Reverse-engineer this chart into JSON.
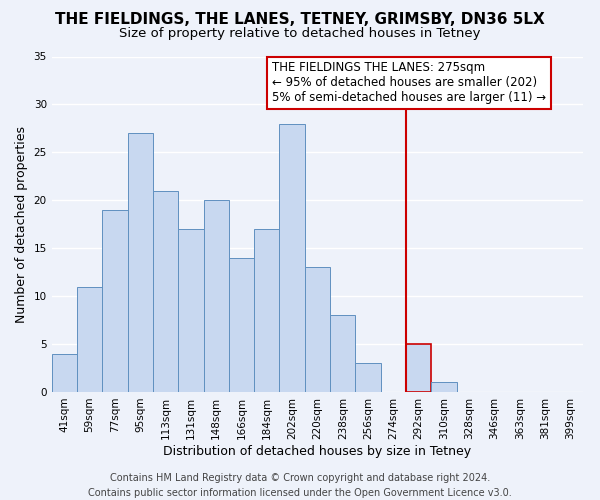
{
  "title": "THE FIELDINGS, THE LANES, TETNEY, GRIMSBY, DN36 5LX",
  "subtitle": "Size of property relative to detached houses in Tetney",
  "xlabel": "Distribution of detached houses by size in Tetney",
  "ylabel": "Number of detached properties",
  "bin_labels": [
    "41sqm",
    "59sqm",
    "77sqm",
    "95sqm",
    "113sqm",
    "131sqm",
    "148sqm",
    "166sqm",
    "184sqm",
    "202sqm",
    "220sqm",
    "238sqm",
    "256sqm",
    "274sqm",
    "292sqm",
    "310sqm",
    "328sqm",
    "346sqm",
    "363sqm",
    "381sqm",
    "399sqm"
  ],
  "bar_values": [
    4,
    11,
    19,
    27,
    21,
    17,
    20,
    14,
    17,
    28,
    13,
    8,
    3,
    0,
    5,
    1,
    0,
    0,
    0,
    0,
    0
  ],
  "normal_bar_color": "#c8d8f0",
  "bar_edge_color": "#6090c0",
  "highlight_bar_edge_color": "#cc0000",
  "ylim": [
    0,
    35
  ],
  "yticks": [
    0,
    5,
    10,
    15,
    20,
    25,
    30,
    35
  ],
  "annotation_line1": "THE FIELDINGS THE LANES: 275sqm",
  "annotation_line2": "← 95% of detached houses are smaller (202)",
  "annotation_line3": "5% of semi-detached houses are larger (11) →",
  "vline_x_index": 13,
  "footer_text": "Contains HM Land Registry data © Crown copyright and database right 2024.\nContains public sector information licensed under the Open Government Licence v3.0.",
  "background_color": "#eef2fa",
  "grid_color": "#ffffff",
  "title_fontsize": 11,
  "subtitle_fontsize": 9.5,
  "axis_label_fontsize": 9,
  "tick_fontsize": 7.5,
  "annotation_fontsize": 8.5,
  "footer_fontsize": 7
}
